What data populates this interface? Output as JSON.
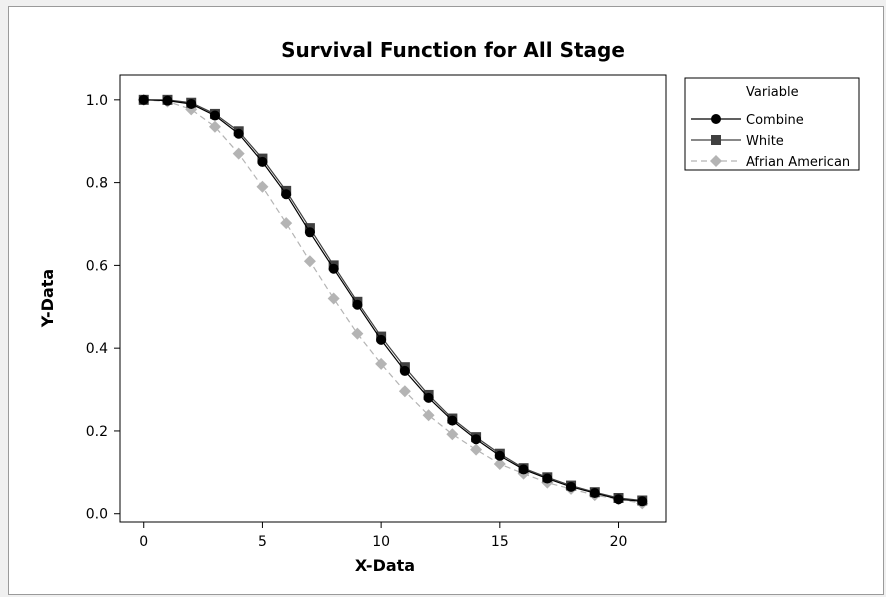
{
  "chart_data": {
    "type": "line",
    "title": "Survival Function for All Stage",
    "xlabel": "X-Data",
    "ylabel": "Y-Data",
    "xlim": [
      -1,
      22
    ],
    "ylim": [
      -0.02,
      1.06
    ],
    "xticks": [
      0,
      5,
      10,
      15,
      20
    ],
    "yticks": [
      0.0,
      0.2,
      0.4,
      0.6,
      0.8,
      1.0
    ],
    "ytick_labels": [
      "0.0",
      "0.2",
      "0.4",
      "0.6",
      "0.8",
      "1.0"
    ],
    "grid": false,
    "legend": {
      "title": "Variable",
      "position": "right"
    },
    "x": [
      0,
      1,
      2,
      3,
      4,
      5,
      6,
      7,
      8,
      9,
      10,
      11,
      12,
      13,
      14,
      15,
      16,
      17,
      18,
      19,
      20,
      21
    ],
    "series": [
      {
        "name": "Combine",
        "marker": "circle",
        "line": "solid",
        "color": "#000000",
        "values": [
          1.0,
          0.998,
          0.99,
          0.962,
          0.918,
          0.85,
          0.772,
          0.68,
          0.592,
          0.505,
          0.42,
          0.345,
          0.28,
          0.225,
          0.18,
          0.14,
          0.107,
          0.085,
          0.065,
          0.05,
          0.035,
          0.03
        ]
      },
      {
        "name": "White",
        "marker": "square",
        "line": "solid",
        "color": "#404040",
        "values": [
          1.0,
          1.0,
          0.993,
          0.966,
          0.924,
          0.858,
          0.78,
          0.69,
          0.6,
          0.512,
          0.428,
          0.354,
          0.287,
          0.23,
          0.185,
          0.145,
          0.11,
          0.088,
          0.068,
          0.052,
          0.038,
          0.032
        ]
      },
      {
        "name": "Afrian American",
        "marker": "diamond",
        "line": "dashed",
        "color": "#b4b4b4",
        "values": [
          1.0,
          0.996,
          0.977,
          0.935,
          0.87,
          0.79,
          0.702,
          0.61,
          0.52,
          0.435,
          0.362,
          0.296,
          0.238,
          0.192,
          0.155,
          0.12,
          0.097,
          0.075,
          0.06,
          0.045,
          0.035,
          0.025
        ]
      }
    ]
  }
}
